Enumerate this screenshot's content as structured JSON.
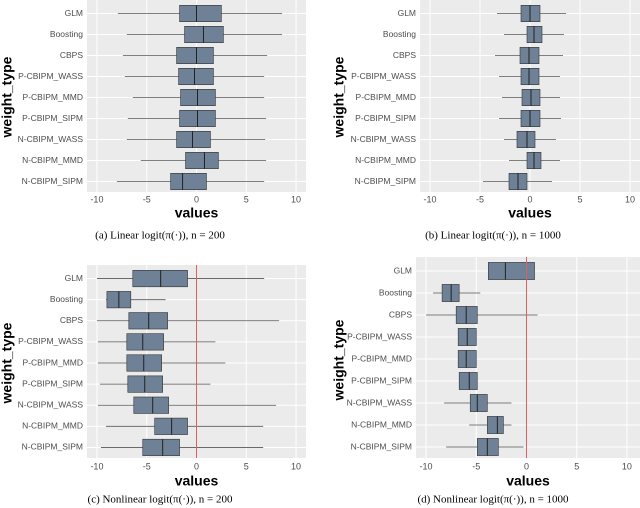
{
  "chart_data": [
    {
      "type": "boxplot",
      "caption": "(a) Linear logit(π(·)), n = 200",
      "xlabel": "values",
      "ylabel": "weight_type",
      "categories": [
        "GLM",
        "Boosting",
        "CBPS",
        "P-CBIPM_WASS",
        "P-CBIPM_MMD",
        "P-CBIPM_SIPM",
        "N-CBIPM_WASS",
        "N-CBIPM_MMD",
        "N-CBIPM_SIPM"
      ],
      "lower": [
        -7.9,
        -7,
        -7.4,
        -7.2,
        -6.4,
        -6.9,
        -7,
        -5.6,
        -8
      ],
      "q1": [
        -1.7,
        -1.2,
        -2,
        -1.8,
        -1.6,
        -1.7,
        -2,
        -1.1,
        -2.6
      ],
      "median": [
        0,
        0.7,
        0,
        -0.2,
        0.1,
        0.1,
        -0.4,
        0.8,
        -1.4
      ],
      "q3": [
        2.5,
        2.7,
        1.7,
        1.7,
        1.9,
        1.9,
        1.4,
        2.2,
        1
      ],
      "upper": [
        8.6,
        8.6,
        7.1,
        6.8,
        6.8,
        7,
        6.9,
        7,
        6.8
      ],
      "color": "#6e8196",
      "xlim": [
        -11,
        11
      ],
      "xticks": [
        -10,
        -5,
        0,
        5,
        10
      ],
      "grid": true
    },
    {
      "type": "boxplot",
      "caption": "(b) Linear logit(π(·)), n = 1000",
      "xlabel": "values",
      "ylabel": "weight_type",
      "categories": [
        "GLM",
        "Boosting",
        "CBPS",
        "P-CBIPM_WASS",
        "P-CBIPM_MMD",
        "P-CBIPM_SIPM",
        "N-CBIPM_WASS",
        "N-CBIPM_MMD",
        "N-CBIPM_SIPM"
      ],
      "lower": [
        -3.3,
        -2.6,
        -3.5,
        -3.1,
        -2.8,
        -3.1,
        -2.6,
        -2.1,
        -4.7
      ],
      "q1": [
        -0.9,
        -0.3,
        -1,
        -0.9,
        -0.8,
        -0.9,
        -1.3,
        -0.3,
        -2.1
      ],
      "median": [
        0,
        0.4,
        -0.1,
        -0.1,
        0.1,
        0,
        -0.3,
        0.4,
        -1.2
      ],
      "q3": [
        1,
        1.2,
        0.9,
        0.9,
        1,
        1,
        0.5,
        1.1,
        -0.3
      ],
      "upper": [
        3.6,
        3.4,
        3.3,
        3,
        3,
        3.1,
        2.6,
        3,
        2.2
      ],
      "color": "#6e8196",
      "xlim": [
        -11,
        11
      ],
      "xticks": [
        -10,
        -5,
        0,
        5,
        10
      ],
      "grid": true
    },
    {
      "type": "boxplot",
      "caption": "(c) Nonlinear logit(π(·)), n = 200",
      "xlabel": "values",
      "ylabel": "weight_type",
      "categories": [
        "GLM",
        "Boosting",
        "CBPS",
        "P-CBIPM_WASS",
        "P-CBIPM_MMD",
        "P-CBIPM_SIPM",
        "N-CBIPM_WASS",
        "N-CBIPM_MMD",
        "N-CBIPM_SIPM"
      ],
      "lower": [
        -10,
        -9.1,
        -10,
        -9.9,
        -9.9,
        -9.7,
        -9.9,
        -9.1,
        -9.6
      ],
      "q1": [
        -6.4,
        -9,
        -6.8,
        -7,
        -7,
        -6.9,
        -6.3,
        -4.2,
        -5.4
      ],
      "median": [
        -3.6,
        -7.8,
        -4.8,
        -5.4,
        -5.3,
        -5.2,
        -4.4,
        -2.5,
        -3.4
      ],
      "q3": [
        -0.9,
        -6.6,
        -2.9,
        -3.3,
        -3.5,
        -3.4,
        -2.8,
        -0.9,
        -1.7
      ],
      "upper": [
        6.8,
        -3.1,
        8.3,
        1.9,
        2.9,
        1.4,
        8,
        6.7,
        6.7
      ],
      "color": "#6e8196",
      "xlim": [
        -11,
        11
      ],
      "xticks": [
        -10,
        -5,
        0,
        5,
        10
      ],
      "grid": true,
      "vline": 0,
      "vline_color": "#e06060"
    },
    {
      "type": "boxplot",
      "caption": "(d) Nonlinear logit(π(·)), n = 1000",
      "xlabel": "values",
      "ylabel": "weight_type",
      "categories": [
        "GLM",
        "Boosting",
        "CBPS",
        "P-CBIPM_WASS",
        "P-CBIPM_MMD",
        "P-CBIPM_SIPM",
        "N-CBIPM_WASS",
        "N-CBIPM_MMD",
        "N-CBIPM_SIPM"
      ],
      "lower": [
        -3.8,
        -9.3,
        -10,
        -6.8,
        -6.8,
        -6.7,
        -8.2,
        -5.7,
        -8
      ],
      "q1": [
        -3.8,
        -8.4,
        -7,
        -6.8,
        -6.8,
        -6.7,
        -5.6,
        -3.9,
        -4.9
      ],
      "median": [
        -2.1,
        -7.5,
        -6,
        -5.9,
        -6,
        -5.7,
        -4.9,
        -2.9,
        -3.9
      ],
      "q3": [
        0.8,
        -6.7,
        -4.9,
        -5,
        -5,
        -4.9,
        -3.9,
        -2.3,
        -2.8
      ],
      "upper": [
        0.8,
        -4.6,
        1.1,
        -5,
        -5,
        -4.9,
        -1.5,
        -1.5,
        -0.3
      ],
      "color": "#6e8196",
      "xlim": [
        -11,
        11.3
      ],
      "xticks": [
        -10,
        -5,
        0,
        5,
        10
      ],
      "grid": true,
      "vline": 0,
      "vline_color": "#e06060"
    }
  ]
}
